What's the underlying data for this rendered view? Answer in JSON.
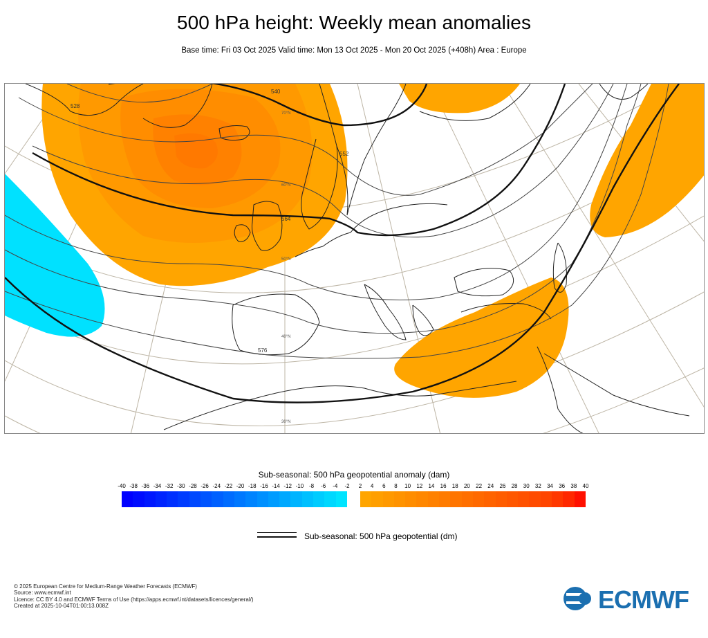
{
  "title": "500 hPa height: Weekly mean anomalies",
  "subtitle": "Base time: Fri 03 Oct 2025 Valid time: Mon 13 Oct 2025 - Mon 20 Oct 2025 (+408h) Area : Europe",
  "map": {
    "contour_labels": [
      "528",
      "540",
      "552",
      "564",
      "576"
    ],
    "latitude_labels": [
      "70°N",
      "60°N",
      "50°N",
      "40°N",
      "30°N"
    ],
    "anomaly_positive_color": "#ffa500",
    "anomaly_negative_color": "#00e1ff"
  },
  "colorbar": {
    "title": "Sub-seasonal: 500 hPa geopotential anomaly (dam)",
    "negative_ticks": [
      "-40",
      "-38",
      "-36",
      "-34",
      "-32",
      "-30",
      "-28",
      "-26",
      "-24",
      "-22",
      "-20",
      "-18",
      "-16",
      "-14",
      "-12",
      "-10",
      "-8",
      "-6",
      "-4",
      "-2"
    ],
    "positive_ticks": [
      "2",
      "4",
      "6",
      "8",
      "10",
      "12",
      "14",
      "16",
      "18",
      "20",
      "22",
      "24",
      "26",
      "28",
      "30",
      "32",
      "34",
      "36",
      "38",
      "40"
    ],
    "negative_colors": [
      "#0000ff",
      "#000cff",
      "#0018ff",
      "#0024ff",
      "#0030ff",
      "#003cff",
      "#0048ff",
      "#0054ff",
      "#0060ff",
      "#006cff",
      "#0078ff",
      "#0084ff",
      "#0090ff",
      "#009cff",
      "#00a8ff",
      "#00b4ff",
      "#00c0ff",
      "#00ccff",
      "#00d8ff",
      "#00e4ff"
    ],
    "positive_colors": [
      "#ffa500",
      "#ff9f00",
      "#ff9900",
      "#ff9300",
      "#ff8d00",
      "#ff8700",
      "#ff8100",
      "#ff7b00",
      "#ff7500",
      "#ff6f00",
      "#ff6900",
      "#ff6300",
      "#ff5d00",
      "#ff5700",
      "#ff5100",
      "#ff4b00",
      "#ff4500",
      "#ff3800",
      "#ff2800",
      "#ff1000"
    ]
  },
  "legend": {
    "line_label": "Sub-seasonal: 500 hPa geopotential (dm)"
  },
  "footer": {
    "line1": "© 2025 European Centre for Medium-Range Weather Forecasts (ECMWF)",
    "line2": "Source: www.ecmwf.int",
    "line3": "Licence: CC BY 4.0 and ECMWF Terms of Use (https://apps.ecmwf.int/datasets/licences/general/)",
    "line4": "Created at 2025-10-04T01:00:13.008Z"
  },
  "logo": {
    "text": "ECMWF",
    "color": "#1b6fb0"
  }
}
